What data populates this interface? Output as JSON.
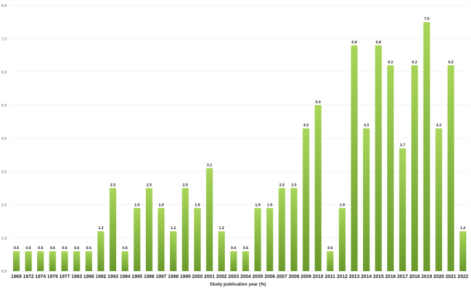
{
  "chart_data": {
    "type": "bar",
    "title": "",
    "xlabel": "Study publication year  (%)",
    "ylabel": "",
    "ylim": [
      0,
      8
    ],
    "yticks": [
      "0.0",
      "1.0",
      "2.0",
      "3.0",
      "4.0",
      "5.0",
      "6.0",
      "7.0",
      "8.0"
    ],
    "grid": true,
    "categories": [
      "1969",
      "1972",
      "1974",
      "1976",
      "1977",
      "1983",
      "1986",
      "1992",
      "1993",
      "1994",
      "1995",
      "1996",
      "1997",
      "1998",
      "1999",
      "2000",
      "2001",
      "2002",
      "2003",
      "2004",
      "2005",
      "2006",
      "2007",
      "2008",
      "2009",
      "2010",
      "2011",
      "2012",
      "2013",
      "2014",
      "2015",
      "2016",
      "2017",
      "2018",
      "2019",
      "2020",
      "2021",
      "2022"
    ],
    "values": [
      0.6,
      0.6,
      0.6,
      0.6,
      0.6,
      0.6,
      0.6,
      1.2,
      2.5,
      0.6,
      1.9,
      2.5,
      1.9,
      1.2,
      2.5,
      1.9,
      3.1,
      1.2,
      0.6,
      0.6,
      1.9,
      1.9,
      2.5,
      2.5,
      4.3,
      5.0,
      0.6,
      1.9,
      6.8,
      4.3,
      6.8,
      6.2,
      3.7,
      6.2,
      7.5,
      4.3,
      6.2,
      1.2
    ],
    "labels": [
      "0.6",
      "0.6",
      "0.6",
      "0.6",
      "0.6",
      "0.6",
      "0.6",
      "1.2",
      "2.5",
      "0.6",
      "1.9",
      "2.5",
      "1.9",
      "1.2",
      "2.5",
      "1.9",
      "3.1",
      "1.2",
      "0.6",
      "0.6",
      "1.9",
      "1.9",
      "2.5",
      "2.5",
      "4.3",
      "5.0",
      "0.6",
      "1.9",
      "6.8",
      "4.3",
      "6.8",
      "6.2",
      "3.7",
      "6.2",
      "7.5",
      "4.3",
      "6.2",
      "1.2"
    ],
    "colors": {
      "bar_top": "#a8d65a",
      "bar_bottom": "#6a9a2c",
      "grid": "#e6e6e6"
    }
  }
}
